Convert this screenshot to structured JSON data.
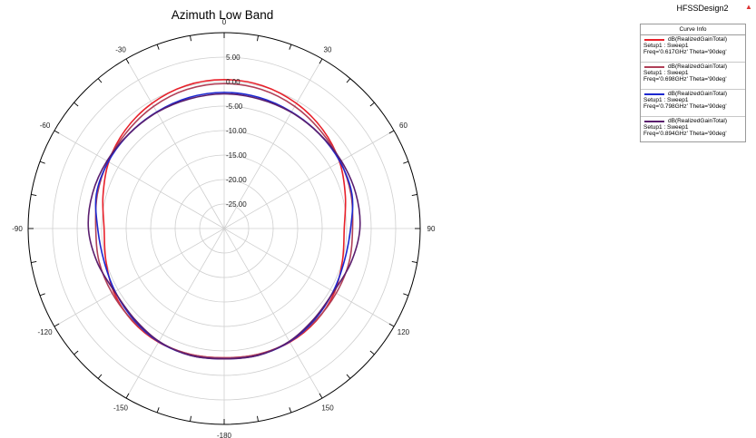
{
  "chart_data": {
    "type": "polar-line",
    "title": "Azimuth Low Band",
    "design_name": "HFSSDesign2",
    "legend_header": "Curve Info",
    "angle_unit": "deg",
    "angle_ticks": [
      0,
      30,
      60,
      90,
      120,
      150,
      -180,
      -150,
      -120,
      -90,
      -60,
      -30
    ],
    "angle_tick_labels": [
      "0",
      "30",
      "60",
      "90",
      "120",
      "150",
      "-180",
      "-150",
      "-120",
      "-90",
      "-60",
      "-30"
    ],
    "radial_range": [
      -30,
      10
    ],
    "radial_ticks": [
      5,
      0,
      -5,
      -10,
      -15,
      -20,
      -25
    ],
    "radial_tick_labels": [
      "5.00",
      "0.00",
      "-5.00",
      "-10.00",
      "-15.00",
      "-20.00",
      "-25.00"
    ],
    "grid": true,
    "legend_position": "top-right",
    "series": [
      {
        "name": "dB(RealizedGainTotal)",
        "setup": "Setup1 : Sweep1",
        "freq": "Freq='0.617GHz' Theta='90deg'",
        "color": "#e8202a",
        "theta": [
          0,
          15,
          30,
          45,
          60,
          75,
          90,
          105,
          120,
          135,
          150,
          165,
          180,
          -165,
          -150,
          -135,
          -120,
          -105,
          -90,
          -75,
          -60,
          -45,
          -30,
          -15
        ],
        "r": [
          0.4,
          0.2,
          -0.5,
          -1.5,
          -2.8,
          -4.4,
          -5.5,
          -5.0,
          -4.0,
          -3.4,
          -3.2,
          -3.4,
          -3.6,
          -3.4,
          -3.2,
          -3.4,
          -4.0,
          -5.0,
          -5.5,
          -4.4,
          -2.8,
          -1.5,
          -0.5,
          0.2
        ]
      },
      {
        "name": "dB(RealizedGainTotal)",
        "setup": "Setup1 : Sweep1",
        "freq": "Freq='0.698GHz' Theta='90deg'",
        "color": "#b04058",
        "theta": [
          0,
          15,
          30,
          45,
          60,
          75,
          90,
          105,
          120,
          135,
          150,
          165,
          180,
          -165,
          -150,
          -135,
          -120,
          -105,
          -90,
          -75,
          -60,
          -45,
          -30,
          -15
        ],
        "r": [
          -0.4,
          -0.6,
          -1.2,
          -2.0,
          -2.6,
          -3.2,
          -3.8,
          -3.6,
          -3.6,
          -3.5,
          -3.3,
          -3.4,
          -3.6,
          -3.4,
          -3.3,
          -3.5,
          -3.6,
          -3.6,
          -3.8,
          -3.2,
          -2.6,
          -2.0,
          -1.2,
          -0.6
        ]
      },
      {
        "name": "dB(RealizedGainTotal)",
        "setup": "Setup1 : Sweep1",
        "freq": "Freq='0.798GHz' Theta='90deg'",
        "color": "#1c28d0",
        "theta": [
          0,
          15,
          30,
          45,
          60,
          75,
          90,
          105,
          120,
          135,
          150,
          165,
          180,
          -165,
          -150,
          -135,
          -120,
          -105,
          -90,
          -75,
          -60,
          -45,
          -30,
          -15
        ],
        "r": [
          -2.2,
          -2.3,
          -2.5,
          -2.6,
          -2.7,
          -3.0,
          -4.2,
          -4.6,
          -4.3,
          -3.8,
          -3.3,
          -3.2,
          -3.4,
          -3.2,
          -3.3,
          -3.8,
          -4.3,
          -4.6,
          -4.2,
          -3.0,
          -2.7,
          -2.6,
          -2.5,
          -2.3
        ]
      },
      {
        "name": "dB(RealizedGainTotal)",
        "setup": "Setup1 : Sweep1",
        "freq": "Freq='0.894GHz' Theta='90deg'",
        "color": "#5a1e6e",
        "theta": [
          0,
          15,
          30,
          45,
          60,
          75,
          90,
          105,
          120,
          135,
          150,
          165,
          180,
          -165,
          -150,
          -135,
          -120,
          -105,
          -90,
          -75,
          -60,
          -45,
          -30,
          -15
        ],
        "r": [
          -2.5,
          -2.6,
          -2.6,
          -2.6,
          -2.4,
          -2.2,
          -2.3,
          -3.2,
          -4.2,
          -4.0,
          -3.4,
          -3.2,
          -3.4,
          -3.2,
          -3.4,
          -4.0,
          -4.2,
          -3.2,
          -2.3,
          -2.2,
          -2.4,
          -2.6,
          -2.6,
          -2.6
        ]
      }
    ]
  }
}
